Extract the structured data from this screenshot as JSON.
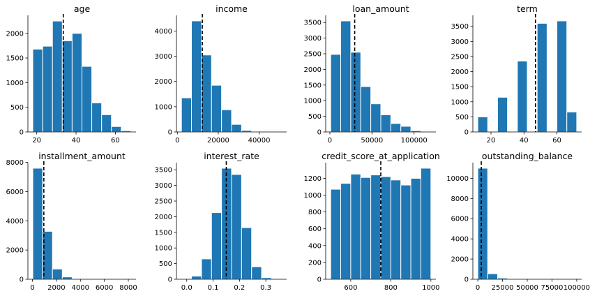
{
  "colors": {
    "bar": "#1f77b4",
    "mean_line": "#000000",
    "background": "#ffffff"
  },
  "chart_data": [
    {
      "type": "bar",
      "title": "age",
      "bin_edges": [
        18,
        23,
        28,
        33,
        38,
        43,
        48,
        53,
        58,
        63,
        68
      ],
      "values": [
        1680,
        1740,
        2250,
        1850,
        2000,
        1330,
        590,
        350,
        110,
        25
      ],
      "mean_line": 33.5,
      "xlim": [
        15.5,
        70.5
      ],
      "ylim": [
        0,
        2365
      ],
      "xticks": [
        20,
        40,
        60
      ],
      "yticks": [
        0,
        500,
        1000,
        1500,
        2000
      ],
      "xtick_labels": [
        "20",
        "40",
        "60"
      ],
      "ytick_labels": [
        "0",
        "500",
        "1000",
        "1500",
        "2000"
      ]
    },
    {
      "type": "bar",
      "title": "income",
      "bin_edges": [
        2000,
        6900,
        11800,
        16700,
        21600,
        26500,
        31400,
        36300,
        41200,
        46100,
        51000
      ],
      "values": [
        1350,
        4400,
        3050,
        1850,
        880,
        300,
        60,
        10,
        3,
        1
      ],
      "mean_line": 12200,
      "xlim": [
        -450,
        53450
      ],
      "ylim": [
        0,
        4620
      ],
      "xticks": [
        0,
        20000,
        40000
      ],
      "yticks": [
        0,
        1000,
        2000,
        3000,
        4000
      ],
      "xtick_labels": [
        "0",
        "20000",
        "40000"
      ],
      "ytick_labels": [
        "0",
        "1000",
        "2000",
        "3000",
        "4000"
      ]
    },
    {
      "type": "bar",
      "title": "loan_amount",
      "bin_edges": [
        1000,
        12900,
        24800,
        36700,
        48600,
        60500,
        72400,
        84300,
        96200,
        108100,
        120000
      ],
      "values": [
        2480,
        3550,
        2550,
        1450,
        900,
        550,
        270,
        180,
        40,
        5
      ],
      "mean_line": 29500,
      "xlim": [
        -4950,
        125950
      ],
      "ylim": [
        0,
        3728
      ],
      "xticks": [
        0,
        50000,
        100000
      ],
      "yticks": [
        0,
        500,
        1000,
        1500,
        2000,
        2500,
        3000,
        3500
      ],
      "xtick_labels": [
        "0",
        "50000",
        "100000"
      ],
      "ytick_labels": [
        "0",
        "500",
        "1000",
        "1500",
        "2000",
        "2500",
        "3000",
        "3500"
      ]
    },
    {
      "type": "bar",
      "title": "term",
      "bin_edges": [
        12,
        18,
        24,
        30,
        36,
        42,
        48,
        54,
        60,
        66,
        72
      ],
      "values": [
        500,
        0,
        1150,
        0,
        2350,
        0,
        3600,
        0,
        3680,
        660
      ],
      "mean_line": 47,
      "xlim": [
        9,
        75
      ],
      "ylim": [
        0,
        3864
      ],
      "xticks": [
        20,
        40,
        60
      ],
      "yticks": [
        0,
        500,
        1000,
        1500,
        2000,
        2500,
        3000,
        3500
      ],
      "xtick_labels": [
        "20",
        "40",
        "60"
      ],
      "ytick_labels": [
        "0",
        "500",
        "1000",
        "1500",
        "2000",
        "2500",
        "3000",
        "3500"
      ]
    },
    {
      "type": "bar",
      "title": "installment_amount",
      "bin_edges": [
        30,
        850,
        1670,
        2490,
        3310,
        4130,
        4950,
        5770,
        6590,
        7410,
        8230
      ],
      "values": [
        7600,
        3280,
        700,
        160,
        40,
        10,
        3,
        1,
        1,
        1
      ],
      "mean_line": 950,
      "xlim": [
        -380,
        8640
      ],
      "ylim": [
        0,
        7980
      ],
      "xticks": [
        0,
        2000,
        4000,
        6000,
        8000
      ],
      "yticks": [
        0,
        2000,
        4000,
        6000,
        8000
      ],
      "xtick_labels": [
        "0",
        "2000",
        "4000",
        "6000",
        "8000"
      ],
      "ytick_labels": [
        "0",
        "2000",
        "4000",
        "6000",
        "8000"
      ]
    },
    {
      "type": "bar",
      "title": "interest_rate",
      "bin_edges": [
        -0.02,
        0.018,
        0.056,
        0.094,
        0.132,
        0.17,
        0.208,
        0.246,
        0.284,
        0.322,
        0.36
      ],
      "values": [
        2,
        100,
        650,
        2130,
        3550,
        3350,
        1650,
        400,
        50,
        2
      ],
      "mean_line": 0.15,
      "xlim": [
        -0.039,
        0.379
      ],
      "ylim": [
        0,
        3728
      ],
      "xticks": [
        0.0,
        0.1,
        0.2,
        0.3
      ],
      "yticks": [
        0,
        500,
        1000,
        1500,
        2000,
        2500,
        3000,
        3500
      ],
      "xtick_labels": [
        "0.0",
        "0.1",
        "0.2",
        "0.3"
      ],
      "ytick_labels": [
        "0",
        "500",
        "1000",
        "1500",
        "2000",
        "2500",
        "3000",
        "3500"
      ]
    },
    {
      "type": "bar",
      "title": "credit_score_at_application",
      "bin_edges": [
        500,
        550,
        600,
        650,
        700,
        750,
        800,
        850,
        900,
        950,
        1000
      ],
      "values": [
        1070,
        1140,
        1250,
        1210,
        1240,
        1220,
        1180,
        1120,
        1200,
        1320
      ],
      "mean_line": 750,
      "xlim": [
        475,
        1025
      ],
      "ylim": [
        0,
        1386
      ],
      "xticks": [
        600,
        800,
        1000
      ],
      "yticks": [
        0,
        200,
        400,
        600,
        800,
        1000,
        1200
      ],
      "xtick_labels": [
        "600",
        "800",
        "1000"
      ],
      "ytick_labels": [
        "0",
        "200",
        "400",
        "600",
        "800",
        "1000",
        "1200"
      ]
    },
    {
      "type": "bar",
      "title": "outstanding_balance",
      "bin_edges": [
        0,
        10000,
        20000,
        30000,
        40000,
        50000,
        60000,
        70000,
        80000,
        90000,
        100000
      ],
      "values": [
        11000,
        550,
        120,
        30,
        10,
        5,
        3,
        2,
        1,
        1
      ],
      "mean_line": 3500,
      "xlim": [
        -5000,
        105000
      ],
      "ylim": [
        0,
        11550
      ],
      "xticks": [
        0,
        25000,
        50000,
        75000,
        100000
      ],
      "yticks": [
        0,
        2000,
        4000,
        6000,
        8000,
        10000
      ],
      "xtick_labels": [
        "0",
        "25000",
        "50000",
        "75000",
        "100000"
      ],
      "ytick_labels": [
        "0",
        "2000",
        "4000",
        "6000",
        "8000",
        "10000"
      ]
    }
  ]
}
